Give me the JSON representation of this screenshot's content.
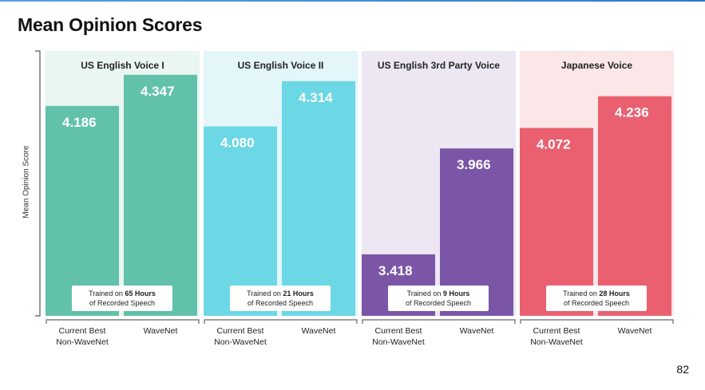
{
  "page": {
    "title": "Mean Opinion Scores",
    "page_number": "82"
  },
  "chart_data": {
    "type": "bar",
    "title": "Mean Opinion Scores",
    "ylabel": "Mean Opinion Score",
    "xlabel": "",
    "ylim": [
      3.1,
      4.47
    ],
    "grid": false,
    "categories": [
      "Current Best Non-WaveNet",
      "WaveNet"
    ],
    "groups": [
      {
        "title": "US English Voice I",
        "values": [
          4.186,
          4.347
        ],
        "value_labels": [
          "4.186",
          "4.347"
        ],
        "note_prefix": "Trained on ",
        "note_hours": "65 Hours",
        "note_line2": "of Recorded Speech",
        "panel_color": "#eaf6f1",
        "bar_color": "#61c1ab"
      },
      {
        "title": "US English Voice II",
        "values": [
          4.08,
          4.314
        ],
        "value_labels": [
          "4.080",
          "4.314"
        ],
        "note_prefix": "Trained on ",
        "note_hours": "21 Hours",
        "note_line2": "of Recorded Speech",
        "panel_color": "#e3f6fa",
        "bar_color": "#6cd7e5"
      },
      {
        "title": "US English 3rd Party Voice",
        "values": [
          3.418,
          3.966
        ],
        "value_labels": [
          "3.418",
          "3.966"
        ],
        "note_prefix": "Trained on ",
        "note_hours": "9 Hours",
        "note_line2": "of Recorded Speech",
        "panel_color": "#ece7f3",
        "bar_color": "#7b56a7"
      },
      {
        "title": "Japanese Voice",
        "values": [
          4.072,
          4.236
        ],
        "value_labels": [
          "4.072",
          "4.236"
        ],
        "note_prefix": "Trained on ",
        "note_hours": "28 Hours",
        "note_line2": "of Recorded Speech",
        "panel_color": "#fbe6e8",
        "bar_color": "#ea6070"
      }
    ]
  }
}
